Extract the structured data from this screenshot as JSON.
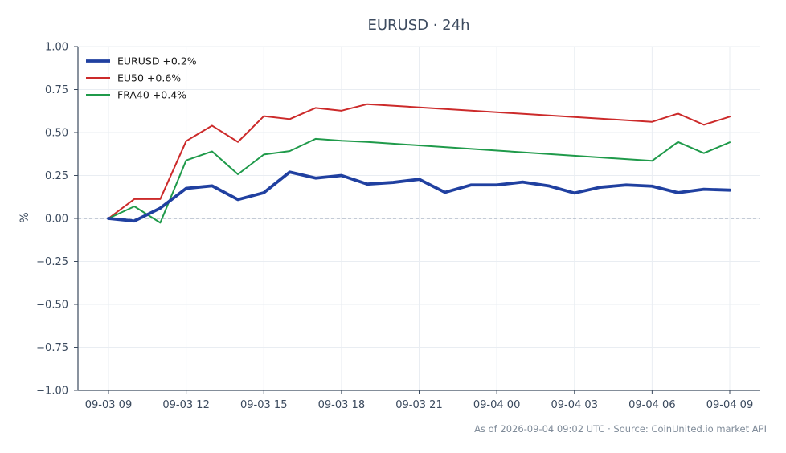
{
  "chart_data": {
    "type": "line",
    "title": "EURUSD · 24h",
    "ylabel": "%",
    "xlabel": "",
    "ylim": [
      -1.0,
      1.0
    ],
    "yticks": [
      1.0,
      0.75,
      0.5,
      0.25,
      0.0,
      -0.25,
      -0.5,
      -0.75,
      -1.0
    ],
    "ytick_labels": [
      "1.00",
      "0.75",
      "0.50",
      "0.25",
      "0.00",
      "−0.25",
      "−0.50",
      "−0.75",
      "−1.00"
    ],
    "x": [
      "09-03 09:00",
      "09-03 10:00",
      "09-03 11:00",
      "09-03 12:00",
      "09-03 13:00",
      "09-03 14:00",
      "09-03 15:00",
      "09-03 16:00",
      "09-03 17:00",
      "09-03 18:00",
      "09-03 19:00",
      "09-03 20:00",
      "09-03 21:00",
      "09-03 22:00",
      "09-03 23:00",
      "09-04 00:00",
      "09-04 01:00",
      "09-04 02:00",
      "09-04 03:00",
      "09-04 04:00",
      "09-04 05:00",
      "09-04 06:00",
      "09-04 07:00",
      "09-04 08:00",
      "09-04 09:00"
    ],
    "xticks": [
      "09-03 09:00",
      "09-03 12:00",
      "09-03 15:00",
      "09-03 18:00",
      "09-03 21:00",
      "09-04 00:00",
      "09-04 03:00",
      "09-04 06:00",
      "09-04 09:00"
    ],
    "xtick_labels": [
      "09-03 09",
      "09-03 12",
      "09-03 15",
      "09-03 18",
      "09-03 21",
      "09-04 00",
      "09-04 03",
      "09-04 06",
      "09-04 09"
    ],
    "grid": true,
    "zero_line": true,
    "legend_position": "top-left",
    "series": [
      {
        "name": "EURUSD +0.2%",
        "color": "#2040a0",
        "width": "thick",
        "points": [
          [
            "09-03 09:00",
            0.0
          ],
          [
            "09-03 10:00",
            -0.015
          ],
          [
            "09-03 11:00",
            0.06
          ],
          [
            "09-03 12:00",
            0.175
          ],
          [
            "09-03 13:00",
            0.19
          ],
          [
            "09-03 14:00",
            0.11
          ],
          [
            "09-03 15:00",
            0.15
          ],
          [
            "09-03 16:00",
            0.27
          ],
          [
            "09-03 17:00",
            0.235
          ],
          [
            "09-03 18:00",
            0.25
          ],
          [
            "09-03 19:00",
            0.2
          ],
          [
            "09-03 20:00",
            0.21
          ],
          [
            "09-03 21:00",
            0.228
          ],
          [
            "09-03 22:00",
            0.152
          ],
          [
            "09-03 23:00",
            0.195
          ],
          [
            "09-04 00:00",
            0.195
          ],
          [
            "09-04 01:00",
            0.212
          ],
          [
            "09-04 02:00",
            0.19
          ],
          [
            "09-04 03:00",
            0.148
          ],
          [
            "09-04 04:00",
            0.182
          ],
          [
            "09-04 05:00",
            0.195
          ],
          [
            "09-04 06:00",
            0.188
          ],
          [
            "09-04 07:00",
            0.15
          ],
          [
            "09-04 08:00",
            0.17
          ],
          [
            "09-04 09:00",
            0.165
          ]
        ]
      },
      {
        "name": "EU50 +0.6%",
        "color": "#cc2a2a",
        "width": "thin",
        "points": [
          [
            "09-03 09:00",
            0.0
          ],
          [
            "09-03 10:00",
            0.113
          ],
          [
            "09-03 11:00",
            0.113
          ],
          [
            "09-03 12:00",
            0.45
          ],
          [
            "09-03 13:00",
            0.54
          ],
          [
            "09-03 14:00",
            0.445
          ],
          [
            "09-03 15:00",
            0.595
          ],
          [
            "09-03 16:00",
            0.578
          ],
          [
            "09-03 17:00",
            0.643
          ],
          [
            "09-03 18:00",
            0.627
          ],
          [
            "09-03 19:00",
            0.665
          ],
          [
            "09-04 06:00",
            0.562
          ],
          [
            "09-04 07:00",
            0.61
          ],
          [
            "09-04 08:00",
            0.545
          ],
          [
            "09-04 09:00",
            0.592
          ]
        ]
      },
      {
        "name": "FRA40 +0.4%",
        "color": "#1f9a4a",
        "width": "thin",
        "points": [
          [
            "09-03 09:00",
            0.0
          ],
          [
            "09-03 10:00",
            0.07
          ],
          [
            "09-03 11:00",
            -0.025
          ],
          [
            "09-03 12:00",
            0.338
          ],
          [
            "09-03 13:00",
            0.39
          ],
          [
            "09-03 14:00",
            0.257
          ],
          [
            "09-03 15:00",
            0.372
          ],
          [
            "09-03 16:00",
            0.392
          ],
          [
            "09-03 17:00",
            0.463
          ],
          [
            "09-03 18:00",
            0.452
          ],
          [
            "09-03 19:00",
            0.445
          ],
          [
            "09-04 06:00",
            0.335
          ],
          [
            "09-04 07:00",
            0.445
          ],
          [
            "09-04 08:00",
            0.38
          ],
          [
            "09-04 09:00",
            0.443
          ]
        ]
      }
    ],
    "footer": "As of 2026-09-04 09:02 UTC · Source: CoinUnited.io market API"
  }
}
